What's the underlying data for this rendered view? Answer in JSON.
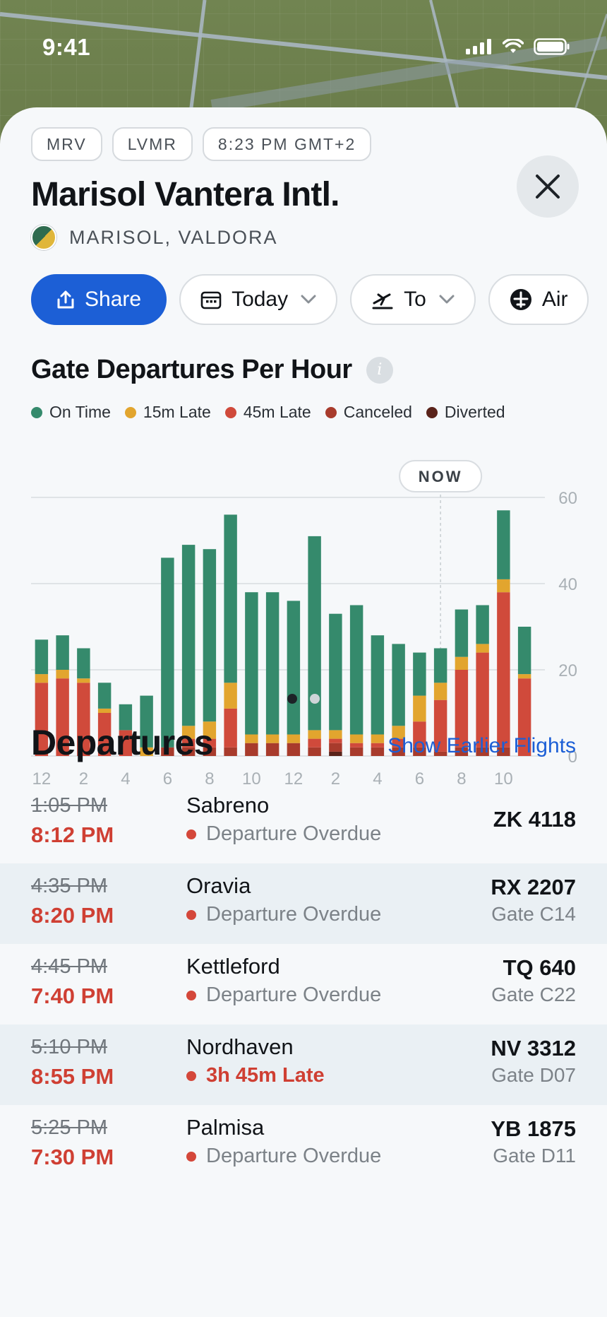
{
  "status_bar": {
    "time": "9:41"
  },
  "header": {
    "chips": [
      "MRV",
      "LVMR",
      "8:23 PM GMT+2"
    ],
    "title": "Marisol Vantera Intl.",
    "location": "MARISOL, VALDORA"
  },
  "actions": {
    "share": "Share",
    "date": "Today",
    "direction": "To",
    "airline_partial": "Air"
  },
  "chart_section": {
    "title": "Gate Departures Per Hour",
    "now_label": "NOW"
  },
  "chart_data": {
    "type": "bar",
    "stacked": true,
    "categories": [
      "12",
      "1",
      "2",
      "3",
      "4",
      "5",
      "6",
      "7",
      "8",
      "9",
      "10",
      "11",
      "12",
      "1",
      "2",
      "3",
      "4",
      "5",
      "6",
      "7",
      "8",
      "9",
      "10",
      "11"
    ],
    "x_tick_labels": [
      "12",
      "2",
      "4",
      "6",
      "8",
      "10",
      "12",
      "2",
      "4",
      "6",
      "8",
      "10"
    ],
    "ylim": [
      0,
      60
    ],
    "y_ticks": [
      "0",
      "20",
      "40",
      "60"
    ],
    "grid": true,
    "legend": "top",
    "now_index": 19.5,
    "series": [
      {
        "name": "Diverted",
        "color": "#5a231a",
        "values": [
          0,
          0,
          0,
          0,
          0,
          0,
          0,
          0,
          0,
          0,
          0,
          0,
          0,
          0,
          1,
          0,
          0,
          0,
          0,
          0,
          0,
          0,
          0,
          0
        ]
      },
      {
        "name": "Canceled",
        "color": "#a83b2c",
        "values": [
          0,
          0,
          0,
          0,
          0,
          0,
          2,
          2,
          2,
          2,
          3,
          3,
          3,
          2,
          2,
          2,
          2,
          2,
          2,
          1,
          2,
          2,
          2,
          0
        ]
      },
      {
        "name": "45m Late",
        "color": "#d04a3b",
        "values": [
          17,
          18,
          17,
          10,
          6,
          0,
          0,
          2,
          2,
          9,
          0,
          0,
          0,
          2,
          1,
          1,
          1,
          2,
          6,
          12,
          18,
          22,
          36,
          18
        ]
      },
      {
        "name": "15m Late",
        "color": "#e2a52e",
        "values": [
          2,
          2,
          1,
          1,
          0,
          2,
          0,
          3,
          4,
          6,
          2,
          2,
          2,
          2,
          2,
          2,
          2,
          3,
          6,
          4,
          3,
          2,
          3,
          1
        ]
      },
      {
        "name": "On Time",
        "color": "#358a6c",
        "values": [
          8,
          8,
          7,
          6,
          6,
          12,
          44,
          42,
          40,
          39,
          33,
          33,
          31,
          45,
          27,
          30,
          23,
          19,
          10,
          8,
          11,
          9,
          16,
          11
        ]
      }
    ]
  },
  "departures": {
    "title": "Departures",
    "earlier_link": "Show Earlier Flights",
    "rows": [
      {
        "scheduled": "1:05 PM",
        "actual": "8:12 PM",
        "destination": "Sabreno",
        "status": "Departure Overdue",
        "flight": "ZK 4118",
        "gate": ""
      },
      {
        "scheduled": "4:35 PM",
        "actual": "8:20 PM",
        "destination": "Oravia",
        "status": "Departure Overdue",
        "flight": "RX 2207",
        "gate": "Gate C14"
      },
      {
        "scheduled": "4:45 PM",
        "actual": "7:40 PM",
        "destination": "Kettleford",
        "status": "Departure Overdue",
        "flight": "TQ 640",
        "gate": "Gate C22"
      },
      {
        "scheduled": "5:10 PM",
        "actual": "8:55 PM",
        "destination": "Nordhaven",
        "status": "3h 45m Late",
        "flight": "NV 3312",
        "gate": "Gate D07"
      },
      {
        "scheduled": "5:25 PM",
        "actual": "7:30 PM",
        "destination": "Palmisa",
        "status": "Departure Overdue",
        "flight": "YB 1875",
        "gate": "Gate D11"
      }
    ]
  }
}
